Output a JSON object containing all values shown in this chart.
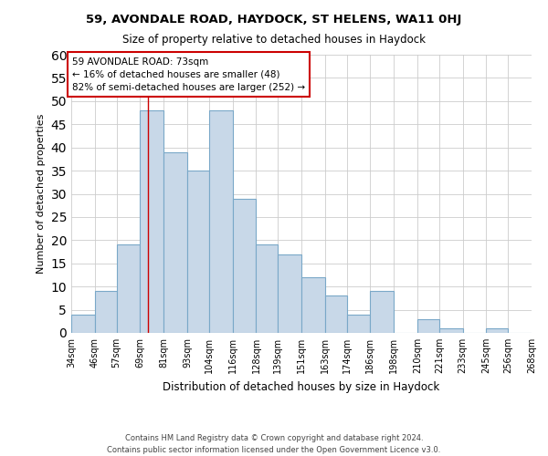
{
  "title": "59, AVONDALE ROAD, HAYDOCK, ST HELENS, WA11 0HJ",
  "subtitle": "Size of property relative to detached houses in Haydock",
  "xlabel": "Distribution of detached houses by size in Haydock",
  "ylabel": "Number of detached properties",
  "bar_color": "#c8d8e8",
  "bar_edge_color": "#7aa8c8",
  "bins": [
    34,
    46,
    57,
    69,
    81,
    93,
    104,
    116,
    128,
    139,
    151,
    163,
    174,
    186,
    198,
    210,
    221,
    233,
    245,
    256,
    268
  ],
  "counts": [
    4,
    9,
    19,
    48,
    39,
    35,
    48,
    29,
    19,
    17,
    12,
    8,
    4,
    9,
    0,
    3,
    1,
    0,
    1,
    0
  ],
  "tick_labels": [
    "34sqm",
    "46sqm",
    "57sqm",
    "69sqm",
    "81sqm",
    "93sqm",
    "104sqm",
    "116sqm",
    "128sqm",
    "139sqm",
    "151sqm",
    "163sqm",
    "174sqm",
    "186sqm",
    "198sqm",
    "210sqm",
    "221sqm",
    "233sqm",
    "245sqm",
    "256sqm",
    "268sqm"
  ],
  "annotation_line1": "59 AVONDALE ROAD: 73sqm",
  "annotation_line2": "← 16% of detached houses are smaller (48)",
  "annotation_line3": "82% of semi-detached houses are larger (252) →",
  "annotation_box_color": "#ffffff",
  "annotation_box_edge": "#cc0000",
  "red_line_x": 73,
  "ylim": [
    0,
    60
  ],
  "yticks": [
    0,
    5,
    10,
    15,
    20,
    25,
    30,
    35,
    40,
    45,
    50,
    55,
    60
  ],
  "footer1": "Contains HM Land Registry data © Crown copyright and database right 2024.",
  "footer2": "Contains public sector information licensed under the Open Government Licence v3.0.",
  "background_color": "#ffffff",
  "grid_color": "#cccccc"
}
